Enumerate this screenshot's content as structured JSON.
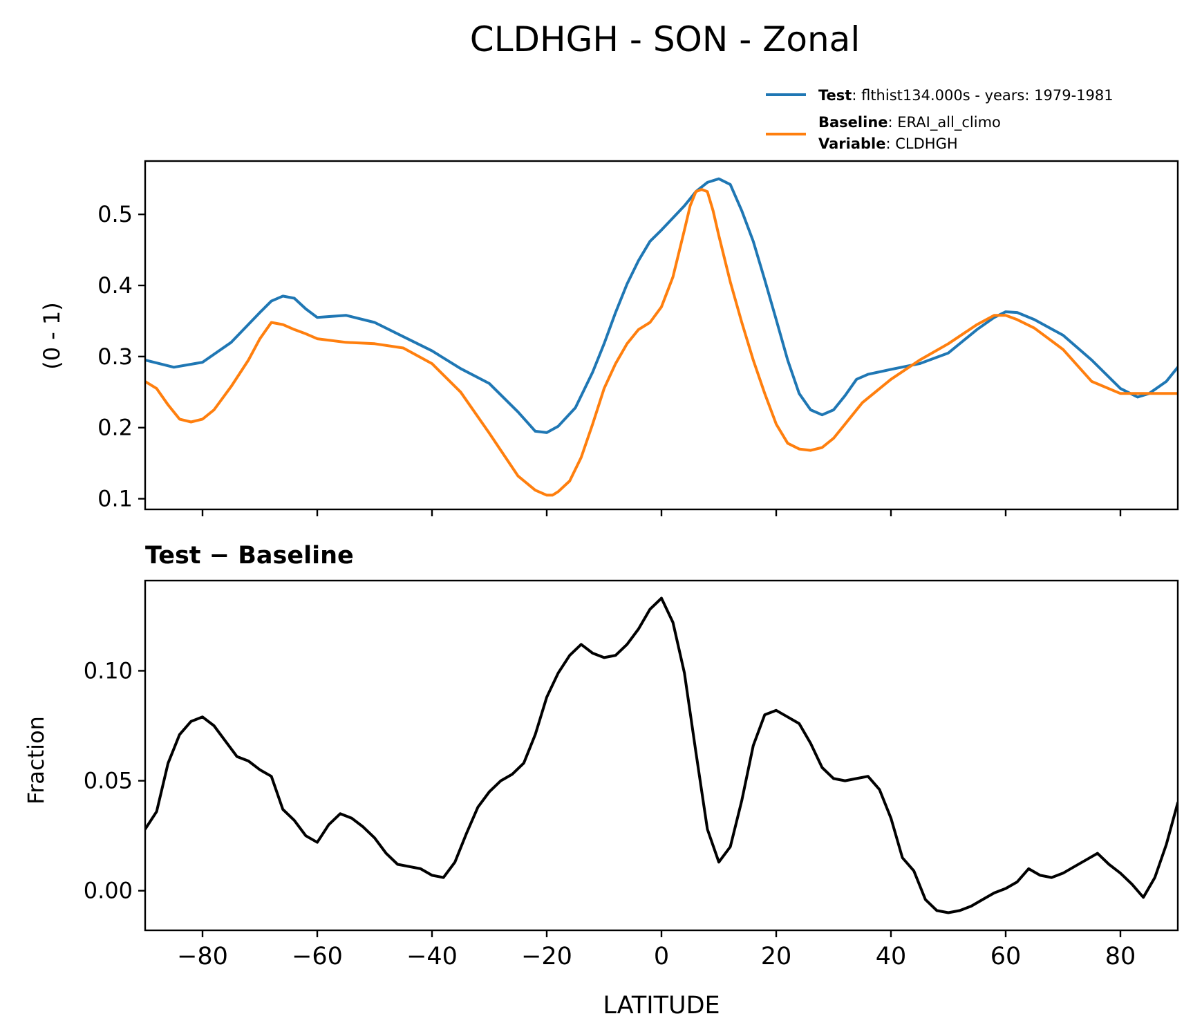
{
  "figure": {
    "title": "CLDHGH - SON - Zonal"
  },
  "legend": {
    "entries": [
      {
        "key": "Test",
        "sep": ": ",
        "text": "flthist134.000s - years: 1979-1981",
        "color": "#1f77b4"
      },
      {
        "key": "Baseline",
        "sep": ": ",
        "text": "ERAI_all_climo",
        "color": "#ff7f0e"
      },
      {
        "key": "Variable",
        "sep": ": ",
        "text": "CLDHGH"
      }
    ]
  },
  "chart_data": [
    {
      "type": "line",
      "title": "",
      "xlabel": "",
      "ylabel": "(0 - 1)",
      "xlim": [
        -90,
        90
      ],
      "ylim": [
        0.085,
        0.575
      ],
      "yticks": [
        0.1,
        0.2,
        0.3,
        0.4,
        0.5
      ],
      "ytick_labels": [
        "0.1",
        "0.2",
        "0.3",
        "0.4",
        "0.5"
      ],
      "xticks": [
        -80,
        -60,
        -40,
        -20,
        0,
        20,
        40,
        60,
        80
      ],
      "grid": false,
      "legend": "top-right, above axes",
      "series": [
        {
          "name": "Test",
          "color": "#1f77b4",
          "x": [
            -90,
            -85,
            -80,
            -75,
            -70,
            -68,
            -66,
            -64,
            -62,
            -60,
            -55,
            -50,
            -45,
            -40,
            -35,
            -30,
            -25,
            -22,
            -20,
            -18,
            -15,
            -12,
            -10,
            -8,
            -6,
            -4,
            -2,
            0,
            2,
            4,
            6,
            8,
            10,
            12,
            14,
            16,
            18,
            20,
            22,
            24,
            26,
            28,
            30,
            32,
            34,
            36,
            40,
            45,
            50,
            55,
            58,
            60,
            62,
            65,
            70,
            75,
            80,
            83,
            85,
            88,
            90
          ],
          "values": [
            0.295,
            0.285,
            0.292,
            0.32,
            0.362,
            0.378,
            0.385,
            0.382,
            0.367,
            0.355,
            0.358,
            0.348,
            0.328,
            0.308,
            0.283,
            0.262,
            0.222,
            0.195,
            0.193,
            0.202,
            0.228,
            0.278,
            0.318,
            0.362,
            0.402,
            0.435,
            0.462,
            0.478,
            0.495,
            0.512,
            0.532,
            0.545,
            0.55,
            0.542,
            0.505,
            0.462,
            0.408,
            0.352,
            0.295,
            0.248,
            0.225,
            0.218,
            0.225,
            0.245,
            0.268,
            0.275,
            0.282,
            0.29,
            0.305,
            0.338,
            0.355,
            0.363,
            0.362,
            0.352,
            0.33,
            0.295,
            0.255,
            0.243,
            0.248,
            0.265,
            0.285
          ]
        },
        {
          "name": "Baseline",
          "color": "#ff7f0e",
          "x": [
            -90,
            -88,
            -86,
            -84,
            -82,
            -80,
            -78,
            -75,
            -72,
            -70,
            -68,
            -66,
            -64,
            -62,
            -60,
            -55,
            -50,
            -45,
            -40,
            -35,
            -30,
            -25,
            -22,
            -20,
            -19,
            -18,
            -16,
            -14,
            -12,
            -10,
            -8,
            -6,
            -4,
            -2,
            0,
            2,
            4,
            5,
            6,
            7,
            8,
            9,
            10,
            12,
            14,
            16,
            18,
            20,
            22,
            24,
            26,
            28,
            30,
            32,
            35,
            40,
            45,
            50,
            55,
            58,
            60,
            62,
            65,
            70,
            75,
            80,
            85,
            90
          ],
          "values": [
            0.265,
            0.255,
            0.232,
            0.212,
            0.208,
            0.212,
            0.225,
            0.258,
            0.295,
            0.325,
            0.348,
            0.345,
            0.338,
            0.332,
            0.325,
            0.32,
            0.318,
            0.312,
            0.29,
            0.25,
            0.192,
            0.132,
            0.112,
            0.105,
            0.105,
            0.11,
            0.125,
            0.158,
            0.205,
            0.255,
            0.29,
            0.318,
            0.338,
            0.348,
            0.37,
            0.412,
            0.478,
            0.512,
            0.532,
            0.535,
            0.532,
            0.505,
            0.47,
            0.405,
            0.348,
            0.295,
            0.248,
            0.205,
            0.178,
            0.17,
            0.168,
            0.172,
            0.185,
            0.205,
            0.235,
            0.268,
            0.295,
            0.318,
            0.345,
            0.358,
            0.358,
            0.352,
            0.34,
            0.31,
            0.265,
            0.248,
            0.248,
            0.248
          ]
        }
      ]
    },
    {
      "type": "line",
      "title": "Test − Baseline",
      "xlabel": "LATITUDE",
      "ylabel": "Fraction",
      "xlim": [
        -90,
        90
      ],
      "ylim": [
        -0.018,
        0.141
      ],
      "yticks": [
        0.0,
        0.05,
        0.1
      ],
      "ytick_labels": [
        "0.00",
        "0.05",
        "0.10"
      ],
      "xticks": [
        -80,
        -60,
        -40,
        -20,
        0,
        20,
        40,
        60,
        80
      ],
      "xtick_labels": [
        "−80",
        "−60",
        "−40",
        "−20",
        "0",
        "20",
        "40",
        "60",
        "80"
      ],
      "grid": false,
      "series": [
        {
          "color": "#000000",
          "x": [
            -90,
            -88,
            -86,
            -84,
            -82,
            -80,
            -78,
            -76,
            -74,
            -72,
            -70,
            -68,
            -66,
            -64,
            -62,
            -60,
            -58,
            -56,
            -54,
            -52,
            -50,
            -48,
            -46,
            -44,
            -42,
            -40,
            -38,
            -36,
            -34,
            -32,
            -30,
            -28,
            -26,
            -24,
            -22,
            -20,
            -18,
            -16,
            -14,
            -12,
            -10,
            -8,
            -6,
            -4,
            -2,
            0,
            2,
            4,
            6,
            8,
            10,
            12,
            14,
            16,
            18,
            20,
            22,
            24,
            26,
            28,
            30,
            32,
            34,
            36,
            38,
            40,
            42,
            44,
            46,
            48,
            50,
            52,
            54,
            56,
            58,
            60,
            62,
            64,
            66,
            68,
            70,
            72,
            74,
            76,
            78,
            80,
            82,
            84,
            86,
            88,
            90
          ],
          "values": [
            0.028,
            0.036,
            0.058,
            0.071,
            0.077,
            0.079,
            0.075,
            0.068,
            0.061,
            0.059,
            0.055,
            0.052,
            0.037,
            0.032,
            0.025,
            0.022,
            0.03,
            0.035,
            0.033,
            0.029,
            0.024,
            0.017,
            0.012,
            0.011,
            0.01,
            0.007,
            0.006,
            0.013,
            0.026,
            0.038,
            0.045,
            0.05,
            0.053,
            0.058,
            0.071,
            0.088,
            0.099,
            0.107,
            0.112,
            0.108,
            0.106,
            0.107,
            0.112,
            0.119,
            0.128,
            0.133,
            0.122,
            0.099,
            0.063,
            0.028,
            0.013,
            0.02,
            0.041,
            0.066,
            0.08,
            0.082,
            0.079,
            0.076,
            0.067,
            0.056,
            0.051,
            0.05,
            0.051,
            0.052,
            0.046,
            0.033,
            0.015,
            0.009,
            -0.004,
            -0.009,
            -0.01,
            -0.009,
            -0.007,
            -0.004,
            -0.001,
            0.001,
            0.004,
            0.01,
            0.007,
            0.006,
            0.008,
            0.011,
            0.014,
            0.017,
            0.012,
            0.008,
            0.003,
            -0.003,
            0.006,
            0.021,
            0.04
          ]
        }
      ]
    }
  ]
}
